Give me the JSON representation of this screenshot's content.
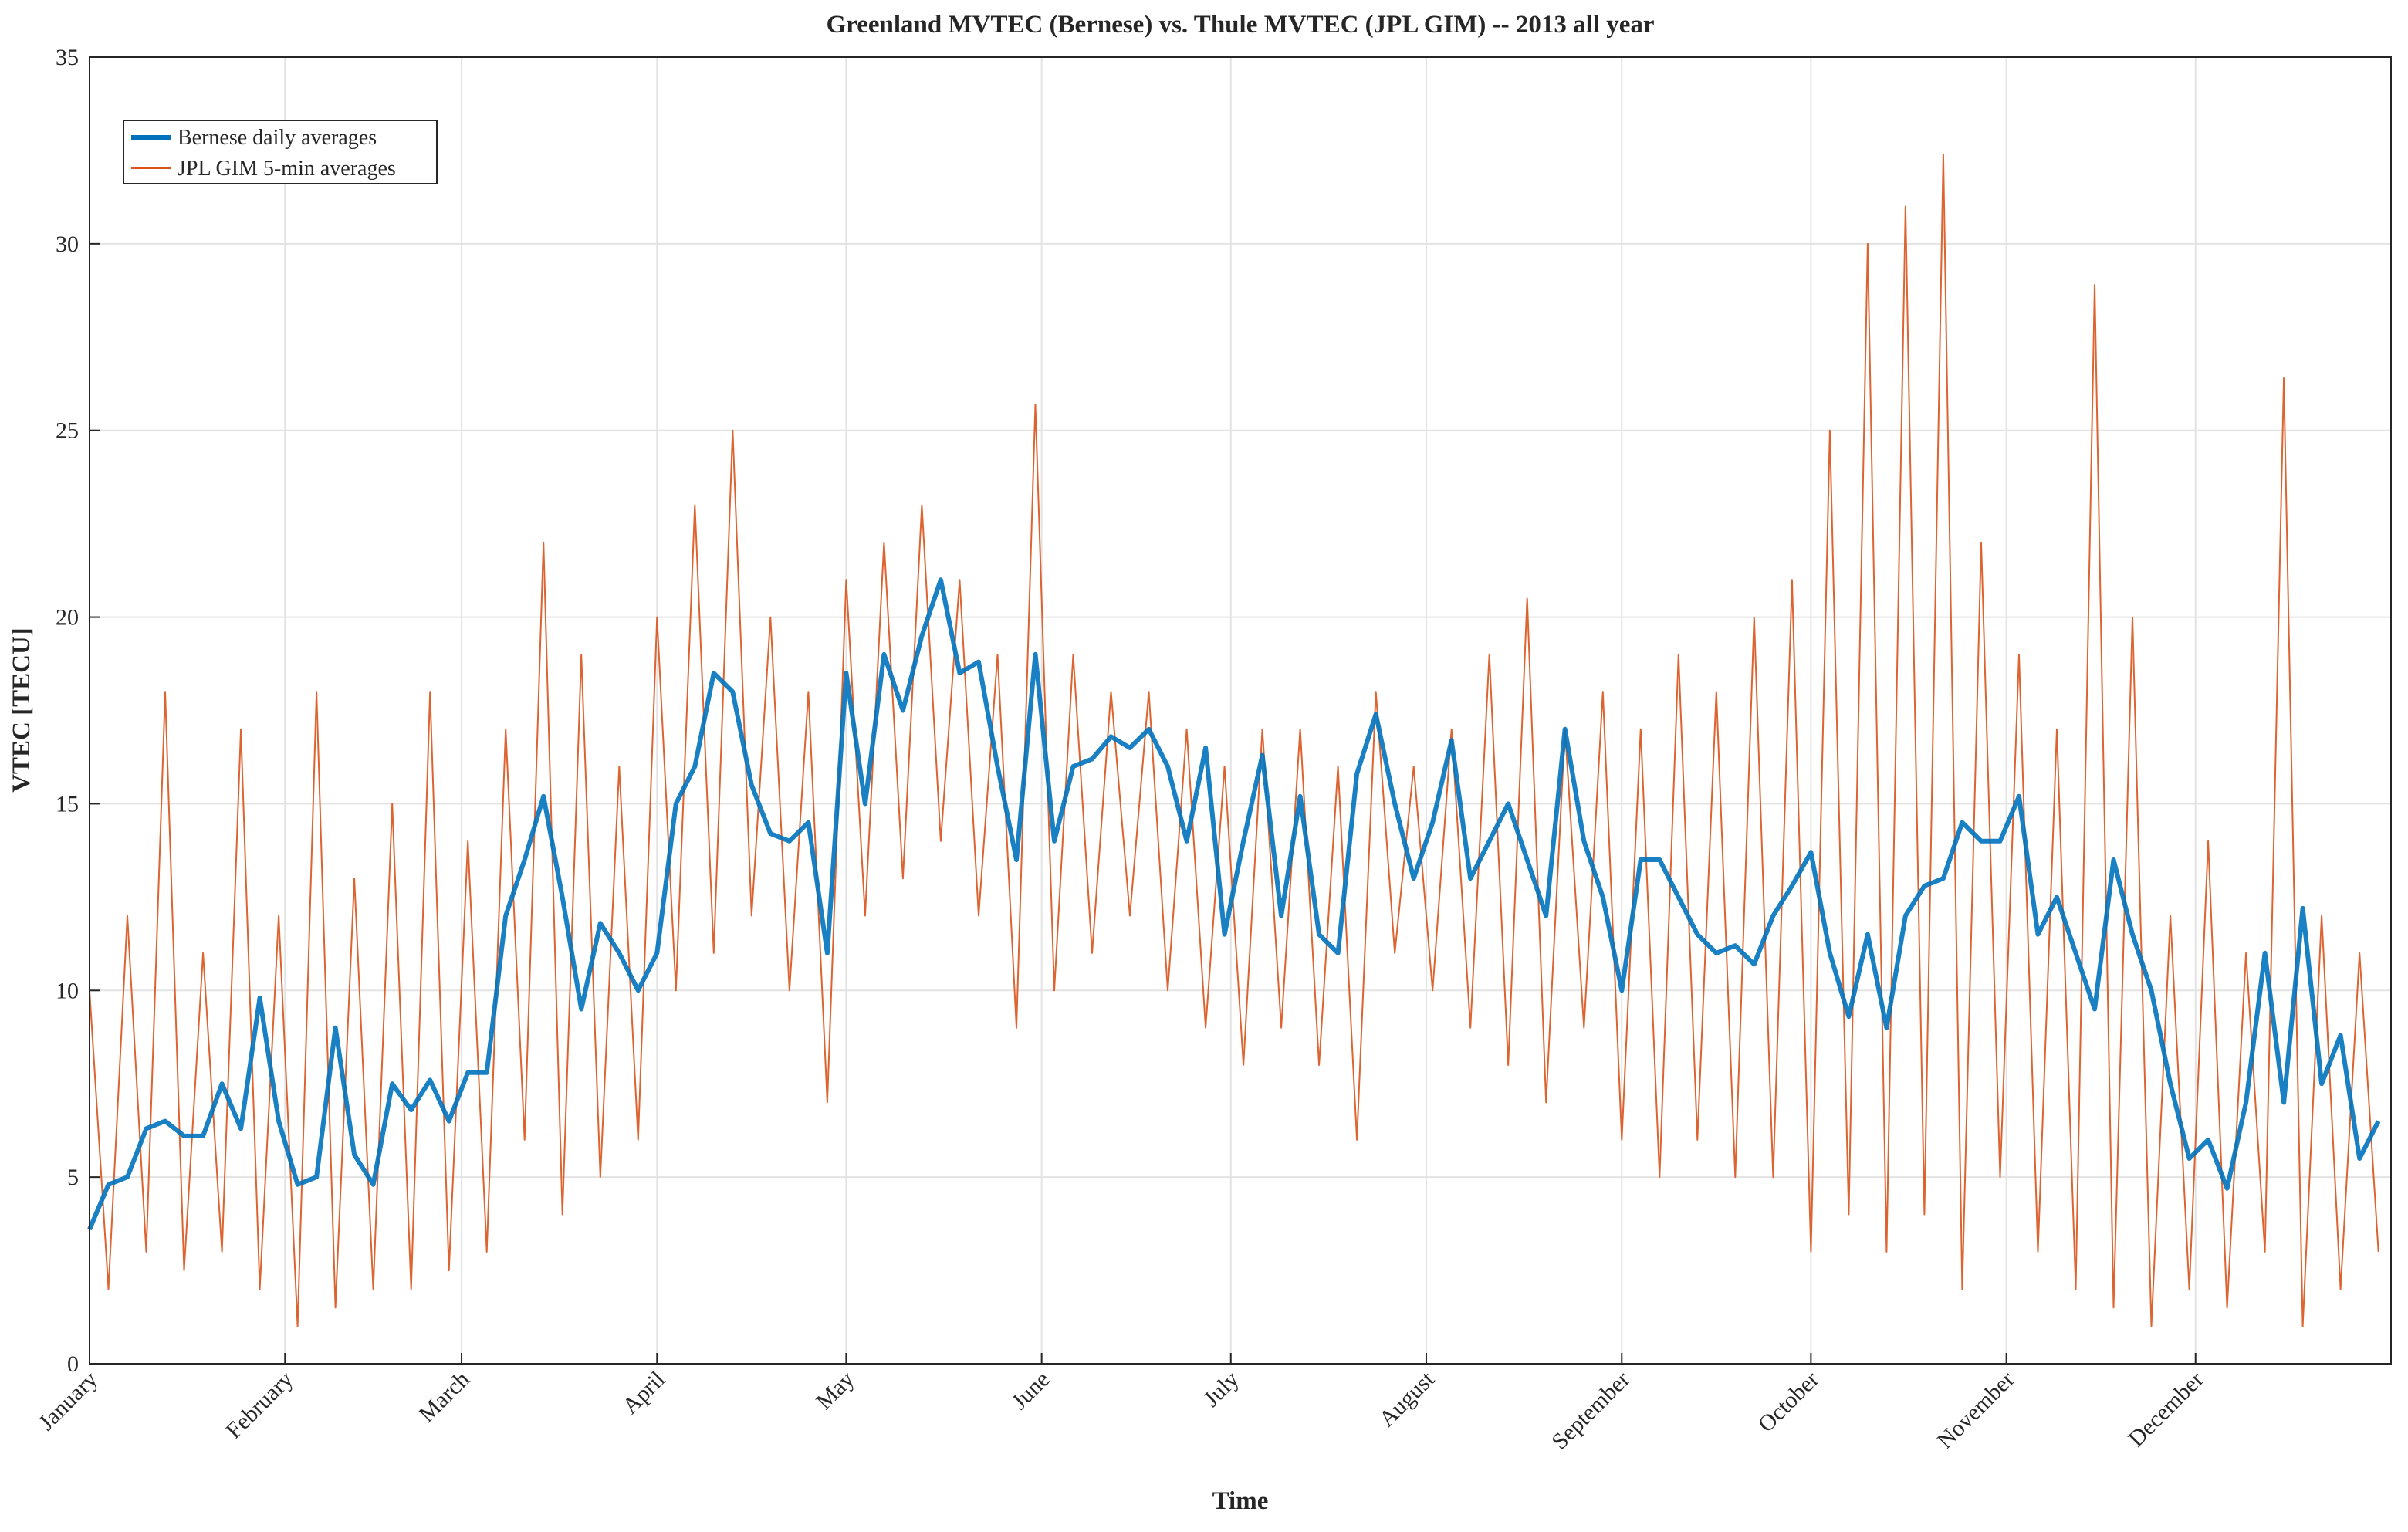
{
  "chart_data": {
    "type": "line",
    "title": "Greenland MVTEC (Bernese) vs. Thule MVTEC (JPL GIM) -- 2013 all year",
    "xlabel": "Time",
    "ylabel": "VTEC [TECU]",
    "xlim": [
      0,
      365
    ],
    "ylim": [
      0,
      35
    ],
    "xticks": [
      {
        "value": 0,
        "label": "January"
      },
      {
        "value": 31,
        "label": "February"
      },
      {
        "value": 59,
        "label": "March"
      },
      {
        "value": 90,
        "label": "April"
      },
      {
        "value": 120,
        "label": "May"
      },
      {
        "value": 151,
        "label": "June"
      },
      {
        "value": 181,
        "label": "July"
      },
      {
        "value": 212,
        "label": "August"
      },
      {
        "value": 243,
        "label": "September"
      },
      {
        "value": 273,
        "label": "October"
      },
      {
        "value": 304,
        "label": "November"
      },
      {
        "value": 334,
        "label": "December"
      }
    ],
    "yticks": [
      0,
      5,
      10,
      15,
      20,
      25,
      30,
      35
    ],
    "grid": true,
    "legend": "upper left",
    "x": [
      0,
      3,
      6,
      9,
      12,
      15,
      18,
      21,
      24,
      27,
      30,
      33,
      36,
      39,
      42,
      45,
      48,
      51,
      54,
      57,
      60,
      63,
      66,
      69,
      72,
      75,
      78,
      81,
      84,
      87,
      90,
      93,
      96,
      99,
      102,
      105,
      108,
      111,
      114,
      117,
      120,
      123,
      126,
      129,
      132,
      135,
      138,
      141,
      144,
      147,
      150,
      153,
      156,
      159,
      162,
      165,
      168,
      171,
      174,
      177,
      180,
      183,
      186,
      189,
      192,
      195,
      198,
      201,
      204,
      207,
      210,
      213,
      216,
      219,
      222,
      225,
      228,
      231,
      234,
      237,
      240,
      243,
      246,
      249,
      252,
      255,
      258,
      261,
      264,
      267,
      270,
      273,
      276,
      279,
      282,
      285,
      288,
      291,
      294,
      297,
      300,
      303,
      306,
      309,
      312,
      315,
      318,
      321,
      324,
      327,
      330,
      333,
      336,
      339,
      342,
      345,
      348,
      351,
      354,
      357,
      360,
      363
    ],
    "series": [
      {
        "name": "JPL GIM 5-min averages",
        "color": "#d95319",
        "width": 2,
        "values": [
          10,
          2,
          12,
          3,
          18,
          2.5,
          11,
          3,
          17,
          2,
          12,
          1,
          18,
          1.5,
          13,
          2,
          15,
          2,
          18,
          2.5,
          14,
          3,
          17,
          6,
          22,
          4,
          19,
          5,
          16,
          6,
          20,
          10,
          23,
          11,
          25,
          12,
          20,
          10,
          18,
          7,
          21,
          12,
          22,
          13,
          23,
          14,
          21,
          12,
          19,
          9,
          25.7,
          10,
          19,
          11,
          18,
          12,
          18,
          10,
          17,
          9,
          16,
          8,
          17,
          9,
          17,
          8,
          16,
          6,
          18,
          11,
          16,
          10,
          17,
          9,
          19,
          8,
          20.5,
          7,
          17,
          9,
          18,
          6,
          17,
          5,
          19,
          6,
          18,
          5,
          20,
          5,
          21,
          3,
          25,
          4,
          30,
          3,
          31,
          4,
          32.4,
          2,
          22,
          5,
          19,
          3,
          17,
          2,
          28.9,
          1.5,
          20,
          1,
          12,
          2,
          14,
          1.5,
          11,
          3,
          26.4,
          1,
          12,
          2,
          11,
          3
        ]
      },
      {
        "name": "Bernese daily averages",
        "color": "#0072bd",
        "width": 6,
        "values": [
          3.6,
          4.8,
          5.0,
          6.3,
          6.5,
          6.1,
          6.1,
          7.5,
          6.3,
          9.8,
          6.5,
          4.8,
          5.0,
          9.0,
          5.6,
          4.8,
          7.5,
          6.8,
          7.6,
          6.5,
          7.8,
          7.8,
          12,
          13.5,
          15.2,
          12.5,
          9.5,
          11.8,
          11,
          10,
          11,
          15,
          16,
          18.5,
          18,
          15.5,
          14.2,
          14,
          14.5,
          11,
          18.5,
          15,
          19,
          17.5,
          19.5,
          21,
          18.5,
          18.8,
          16,
          13.5,
          19,
          14,
          16,
          16.2,
          16.8,
          16.5,
          17,
          16,
          14,
          16.5,
          11.5,
          14,
          16.3,
          12,
          15.2,
          11.5,
          11,
          15.8,
          17.4,
          15,
          13,
          14.5,
          16.7,
          13,
          14,
          15,
          13.5,
          12,
          17,
          14,
          12.5,
          10,
          13.5,
          13.5,
          12.5,
          11.5,
          11,
          11.2,
          10.7,
          12,
          12.8,
          13.7,
          11,
          9.3,
          11.5,
          9,
          12,
          12.8,
          13,
          14.5,
          14,
          14,
          15.2,
          11.5,
          12.5,
          11,
          9.5,
          13.5,
          11.5,
          10,
          7.5,
          5.5,
          6,
          4.7,
          7,
          11,
          7,
          12.2,
          7.5,
          8.8,
          5.5,
          6.5
        ]
      }
    ]
  }
}
